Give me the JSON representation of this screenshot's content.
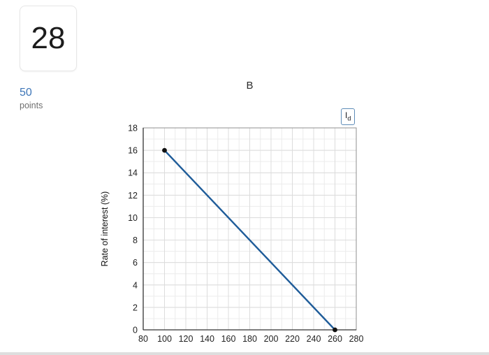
{
  "question": {
    "number": "28",
    "points_value": "50",
    "points_label": "points"
  },
  "chart_data": {
    "type": "line",
    "title": "B",
    "xlabel": "",
    "ylabel": "Rate of interest (%)",
    "xlim": [
      80,
      280
    ],
    "ylim": [
      0,
      18
    ],
    "x_ticks": [
      80,
      100,
      120,
      140,
      160,
      180,
      200,
      220,
      240,
      260,
      280
    ],
    "y_ticks": [
      0,
      2,
      4,
      6,
      8,
      10,
      12,
      14,
      16,
      18
    ],
    "x_minor_step": 10,
    "y_minor_step": 1,
    "grid": true,
    "legend": {
      "main": "I",
      "sub": "d",
      "position": "top-right"
    },
    "series": [
      {
        "name": "Id",
        "x": [
          100,
          260
        ],
        "y": [
          16,
          0
        ],
        "color": "#1f5c99",
        "marker_color": "#111111",
        "markers": true
      }
    ],
    "colors": {
      "line": "#1f5c99",
      "marker": "#111111",
      "grid_minor": "#ececec",
      "grid_major": "#dcdcdc",
      "axis": "#333333",
      "border": "#8f8f8f",
      "tick_text": "#222222",
      "legend_border": "#5d8cb8",
      "accent_blue": "#3e76b8"
    }
  }
}
